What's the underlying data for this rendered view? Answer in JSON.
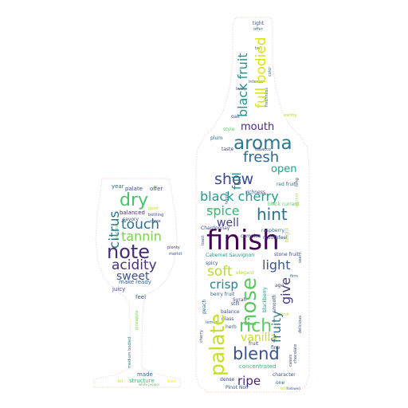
{
  "figure": {
    "shapes": [
      "wine-glass",
      "wine-bottle"
    ],
    "outline_color": "#f3d6cf",
    "palette": [
      "#440154",
      "#3b528b",
      "#21918c",
      "#5ec962",
      "#c7e020",
      "#fde725"
    ]
  },
  "words": [
    {
      "text": "finish",
      "color": "#440154"
    },
    {
      "text": "aroma",
      "color": "#2a788e"
    },
    {
      "text": "palate",
      "color": "#c7e020"
    },
    {
      "text": "nose",
      "color": "#5ec962"
    },
    {
      "text": "rich",
      "color": "#5ec962"
    },
    {
      "text": "blend",
      "color": "#3b528b"
    },
    {
      "text": "black cherry",
      "color": "#1f9e89"
    },
    {
      "text": "hint",
      "color": "#2c728e"
    },
    {
      "text": "fresh",
      "color": "#31688e"
    },
    {
      "text": "show",
      "color": "#3e4a89"
    },
    {
      "text": "full bodied",
      "color": "#d8e219"
    },
    {
      "text": "black fruit",
      "color": "#21918c"
    },
    {
      "text": "mouth",
      "color": "#472d7b"
    },
    {
      "text": "spice",
      "color": "#35b779"
    },
    {
      "text": "well",
      "color": "#414487"
    },
    {
      "text": "open",
      "color": "#21a585"
    },
    {
      "text": "full",
      "color": "#2a788e"
    },
    {
      "text": "soft",
      "color": "#b5de2b"
    },
    {
      "text": "light",
      "color": "#38598c"
    },
    {
      "text": "crisp",
      "color": "#26828e"
    },
    {
      "text": "give",
      "color": "#443983"
    },
    {
      "text": "fruity",
      "color": "#2c728e"
    },
    {
      "text": "vanilla",
      "color": "#c8e020"
    },
    {
      "text": "ripe",
      "color": "#482475"
    },
    {
      "text": "note",
      "color": "#472c7a"
    },
    {
      "text": "dry",
      "color": "#4ac16d"
    },
    {
      "text": "touch",
      "color": "#2d708e"
    },
    {
      "text": "tannin",
      "color": "#7ad151"
    },
    {
      "text": "citrus",
      "color": "#2a788e"
    },
    {
      "text": "acidity",
      "color": "#46327e"
    },
    {
      "text": "sweet",
      "color": "#3b528b"
    },
    {
      "text": "palate",
      "color": "#3e4a89"
    },
    {
      "text": "offer",
      "color": "#3b528b"
    },
    {
      "text": "year",
      "color": "#31688e"
    },
    {
      "text": "balanced",
      "color": "#472d7b"
    },
    {
      "text": "savory",
      "color": "#414487"
    },
    {
      "text": "make",
      "color": "#355f8d"
    },
    {
      "text": "ready",
      "color": "#31688e"
    },
    {
      "text": "juicy",
      "color": "#3e4a89"
    },
    {
      "text": "feel",
      "color": "#3b528b"
    },
    {
      "text": "made",
      "color": "#31688e"
    },
    {
      "text": "structure",
      "color": "#35b779"
    },
    {
      "text": "medium bodied",
      "color": "#21918c"
    },
    {
      "text": "pineapple",
      "color": "#7ad151"
    },
    {
      "text": "merlot",
      "color": "#3b528b"
    },
    {
      "text": "plenty",
      "color": "#414487"
    },
    {
      "text": "good",
      "color": "#c7e020"
    },
    {
      "text": "bottling",
      "color": "#3b528b"
    },
    {
      "text": "come",
      "color": "#3e4a89"
    },
    {
      "text": "berry",
      "color": "#fde725"
    },
    {
      "text": "lead",
      "color": "#fde725"
    },
    {
      "text": "bit",
      "color": "#c7e020"
    },
    {
      "text": "white pepper",
      "color": "#5ec962"
    },
    {
      "text": "texture",
      "color": "#5ec962"
    },
    {
      "text": "bright",
      "color": "#b5de2b"
    },
    {
      "text": "red fruit",
      "color": "#2a788e"
    },
    {
      "text": "black currant",
      "color": "#5ec962"
    },
    {
      "text": "raspberry",
      "color": "#31688e"
    },
    {
      "text": "mouthfeel",
      "color": "#3e4a89"
    },
    {
      "text": "stone fruit",
      "color": "#414487"
    },
    {
      "text": "Cabernet Sauvignon",
      "color": "#21918c"
    },
    {
      "text": "elegant",
      "color": "#b5de2b"
    },
    {
      "text": "spicy",
      "color": "#3b528b"
    },
    {
      "text": "firm",
      "color": "#31688e"
    },
    {
      "text": "age",
      "color": "#3e4a89"
    },
    {
      "text": "blackberry",
      "color": "#1f9e89"
    },
    {
      "text": "smooth",
      "color": "#3b528b"
    },
    {
      "text": "Syrah",
      "color": "#414487"
    },
    {
      "text": "berry fruit",
      "color": "#31688e"
    },
    {
      "text": "still",
      "color": "#3b528b"
    },
    {
      "text": "balance",
      "color": "#3e4a89"
    },
    {
      "text": "peach",
      "color": "#31688e"
    },
    {
      "text": "glass",
      "color": "#3b528b"
    },
    {
      "text": "herb",
      "color": "#31688e"
    },
    {
      "text": "fruit",
      "color": "#414487"
    },
    {
      "text": "fine",
      "color": "#3e4a89"
    },
    {
      "text": "concentrated",
      "color": "#35b779"
    },
    {
      "text": "character",
      "color": "#3b528b"
    },
    {
      "text": "dense",
      "color": "#3e4a89"
    },
    {
      "text": "Pinot Noir",
      "color": "#3b528b"
    },
    {
      "text": "one",
      "color": "#31688e"
    },
    {
      "text": "will",
      "color": "#c7e020"
    },
    {
      "text": "followed",
      "color": "#3b528b"
    },
    {
      "text": "Chardonnay",
      "color": "#3e4a89"
    },
    {
      "text": "complex",
      "color": "#414487"
    },
    {
      "text": "richness",
      "color": "#3b528b"
    },
    {
      "text": "taste",
      "color": "#3e4a89"
    },
    {
      "text": "tobacco",
      "color": "#3b528b"
    },
    {
      "text": "plum",
      "color": "#31688e"
    },
    {
      "text": "oak",
      "color": "#3b528b"
    },
    {
      "text": "style",
      "color": "#5ec962"
    },
    {
      "text": "earthy",
      "color": "#b5de2b"
    },
    {
      "text": "intense",
      "color": "#3e4a89"
    },
    {
      "text": "lively",
      "color": "#3b528b"
    },
    {
      "text": "freshness",
      "color": "#31688e"
    },
    {
      "text": "tight",
      "color": "#3e4a89"
    },
    {
      "text": "offer",
      "color": "#31688e"
    },
    {
      "text": "tart",
      "color": "#3b528b"
    },
    {
      "text": "color",
      "color": "#31688e"
    },
    {
      "text": "toast",
      "color": "#3b528b"
    },
    {
      "text": "honey",
      "color": "#414487"
    },
    {
      "text": "long",
      "color": "#3e4a89"
    },
    {
      "text": "drink",
      "color": "#b5de2b"
    },
    {
      "text": "apricot",
      "color": "#b5de2b"
    },
    {
      "text": "cassis",
      "color": "#3e4a89"
    },
    {
      "text": "delicious",
      "color": "#3b528b"
    },
    {
      "text": "chocolate",
      "color": "#3e4a89"
    },
    {
      "text": "cherry",
      "color": "#3e4a89"
    },
    {
      "text": "lemon",
      "color": "#31688e"
    },
    {
      "text": "green",
      "color": "#5ec962"
    },
    {
      "text": "seem",
      "color": "#3b528b"
    },
    {
      "text": "black pepper",
      "color": "#3e4a89"
    }
  ]
}
